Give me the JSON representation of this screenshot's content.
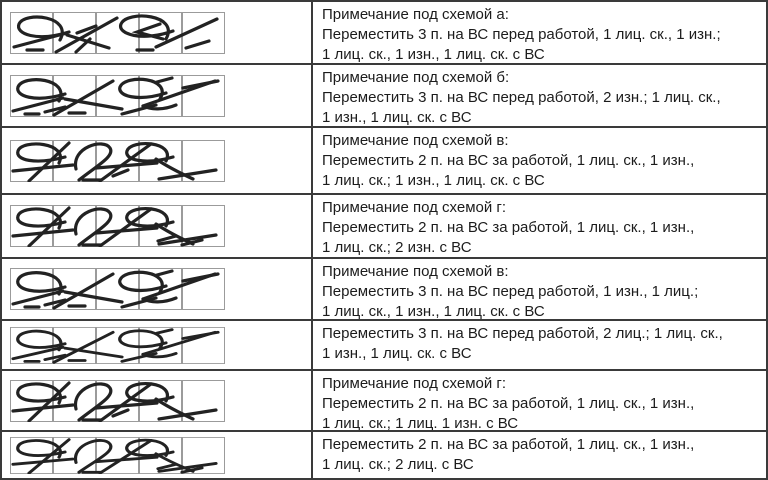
{
  "document": {
    "type": "knitting-chart-legend-table",
    "language": "ru"
  },
  "colors": {
    "table_border": "#3a3a3a",
    "strip_grid": "#9b9b9b",
    "symbol_ink": "#222222",
    "text": "#1c1c1c",
    "background": "#ffffff"
  },
  "table": {
    "rows": [
      {
        "symbol": "cable-front-3-icon-a",
        "note_lines": [
          "Примечание под схемой а:",
          "Переместить 3 п. на ВС перед работой, 1 лиц. ск., 1 изн.;",
          "1 лиц. ск., 1 изн., 1 лиц. ск. с ВС"
        ]
      },
      {
        "symbol": "cable-front-3-icon-b",
        "note_lines": [
          "Примечание под схемой б:",
          "Переместить 3 п. на ВС перед работой, 2 изн.; 1 лиц. ск.,",
          "1 изн., 1 лиц. ск. с ВС"
        ]
      },
      {
        "symbol": "cable-back-2-icon-a",
        "note_lines": [
          "Примечание под схемой в:",
          "Переместить 2 п. на ВС за работой, 1 лиц. ск., 1 изн.,",
          "1 лиц. ск.; 1 изн., 1 лиц. ск. с ВС"
        ]
      },
      {
        "symbol": "cable-back-2-icon-b",
        "note_lines": [
          "Примечание под схемой г:",
          "Переместить 2 п. на ВС за работой, 1 лиц. ск., 1 изн.,",
          "1 лиц. ск.; 2 изн. с ВС"
        ]
      },
      {
        "symbol": "cable-front-3-icon-b",
        "note_lines": [
          "Примечание под схемой в:",
          "Переместить 3 п. на ВС перед работой, 1 изн., 1 лиц.;",
          "1 лиц. ск., 1 изн., 1 лиц. ск. с ВС"
        ]
      },
      {
        "symbol": "cable-front-3-icon-b",
        "note_lines": [
          "Переместить 3 п. на ВС перед работой, 2 лиц.; 1 лиц. ск.,",
          "1 изн., 1 лиц. ск. с ВС"
        ]
      },
      {
        "symbol": "cable-back-2-icon-a",
        "note_lines": [
          "Примечание под схемой г:",
          "Переместить 2 п. на ВС за работой, 1 лиц. ск., 1 изн.,",
          "1 лиц. ск.; 1 лиц. 1 изн. с ВС"
        ]
      },
      {
        "symbol": "cable-back-2-icon-b",
        "note_lines": [
          "Переместить 2 п. на ВС за работой, 1 лиц. ск., 1 изн.,",
          "1 лиц. ск.; 2 лиц. с ВС"
        ]
      }
    ]
  }
}
